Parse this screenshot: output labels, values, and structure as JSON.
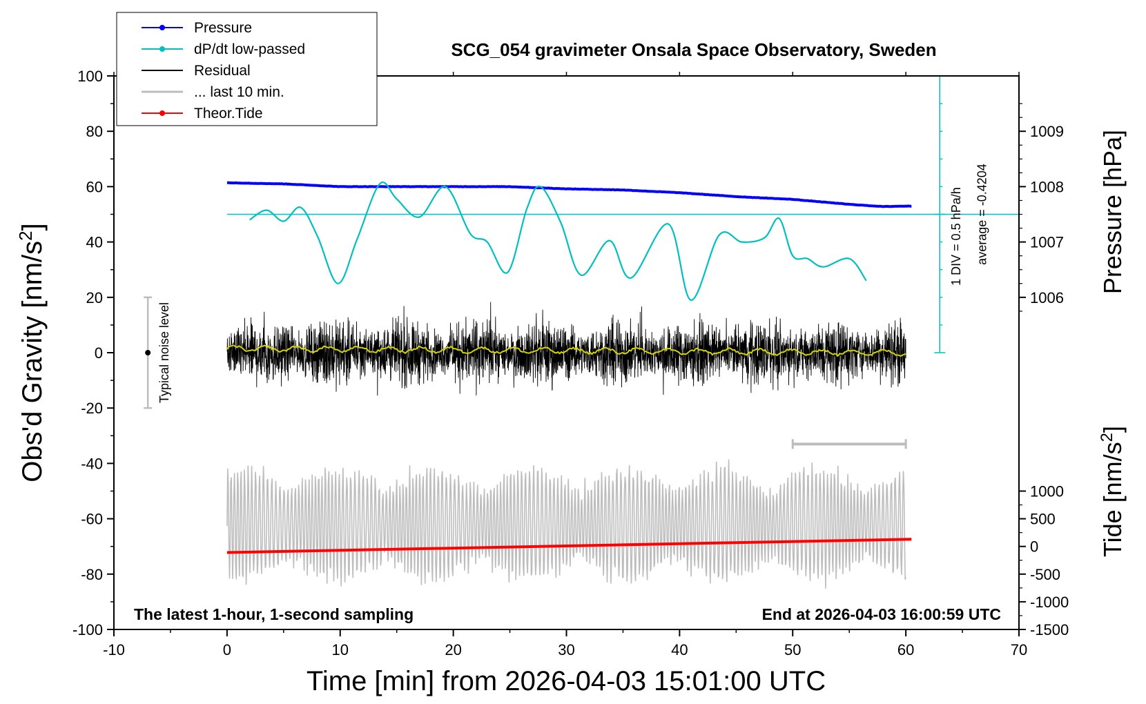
{
  "chart_data": {
    "type": "line",
    "title": "SCG_054 gravimeter Onsala Space Observatory, Sweden",
    "xlabel": "Time [min] from 2026-04-03 15:01:00 UTC",
    "ylabel_left": "Obs'd Gravity [nm/s²]",
    "ylabel_left_base": "Obs'd Gravity [nm/s",
    "ylabel_left_sup": "2",
    "ylabel_left_end": "]",
    "ylabel_pressure": "Pressure [hPa]",
    "ylabel_tide_base": "Tide [nm/s",
    "ylabel_tide_sup": "2",
    "ylabel_tide_end": "]",
    "xlim": [
      -10,
      70
    ],
    "ylim_left": [
      -100,
      100
    ],
    "x_ticks": [
      "-10",
      "0",
      "10",
      "20",
      "30",
      "40",
      "50",
      "60",
      "70"
    ],
    "y_ticks_left": [
      "-100",
      "-80",
      "-60",
      "-40",
      "-20",
      "0",
      "20",
      "40",
      "60",
      "80",
      "100"
    ],
    "pressure_axis": {
      "ticks": [
        "1006",
        "1007",
        "1008",
        "1009"
      ],
      "tick_values": [
        1006,
        1007,
        1008,
        1009
      ],
      "map": {
        "p0": 1006,
        "g0": 20,
        "g_per_hpa": 20
      }
    },
    "tide_axis": {
      "ticks": [
        "-1500",
        "-1000",
        "-500",
        "0",
        "500",
        "1000"
      ],
      "tick_values": [
        -1500,
        -1000,
        -500,
        0,
        500,
        1000
      ],
      "map": {
        "t0": -1500,
        "g0": -100,
        "g_per_unit": 0.02
      }
    },
    "legend": {
      "placement": "top-left",
      "entries": [
        {
          "label": "Pressure",
          "color": "#0000ff",
          "marker": true
        },
        {
          "label": "dP/dt low-passed",
          "color": "#00bfbf",
          "marker": true
        },
        {
          "label": "Residual",
          "color": "#000000",
          "marker": false
        },
        {
          "label": "... last 10 min.",
          "color": "#bdbdbd",
          "marker": false
        },
        {
          "label": "Theor.Tide",
          "color": "#ff0000",
          "marker": true
        }
      ]
    },
    "series": [
      {
        "name": "Pressure",
        "color": "#0000ff",
        "x": [
          0,
          5,
          10,
          15,
          20,
          25,
          30,
          35,
          40,
          45,
          50,
          55,
          58,
          60.5
        ],
        "y_hpa": [
          1008.07,
          1008.05,
          1008.0,
          1008.0,
          1008.0,
          1008.0,
          1007.96,
          1007.94,
          1007.89,
          1007.82,
          1007.77,
          1007.68,
          1007.64,
          1007.65
        ]
      },
      {
        "name": "dP/dt low-passed",
        "color": "#00bfbf",
        "x": [
          2,
          3.5,
          5,
          6.5,
          8,
          9.8,
          11.5,
          13.5,
          15,
          17,
          19.3,
          21.5,
          23,
          24.8,
          26.5,
          27.7,
          29.5,
          31.3,
          33.8,
          35.7,
          39,
          41,
          43.5,
          45.5,
          47.5,
          48.8,
          50,
          51.3,
          52.7,
          55,
          56.5
        ],
        "y": [
          48,
          51.5,
          47.5,
          52.5,
          42,
          25,
          41,
          61,
          55.5,
          49,
          60,
          43,
          40,
          29,
          52,
          60,
          47,
          28,
          40.5,
          27,
          46.5,
          19,
          42.5,
          40,
          41.5,
          48.5,
          35,
          34,
          31,
          34,
          26
        ]
      },
      {
        "name": "Residual",
        "color": "#000000",
        "x_range": [
          0,
          60
        ],
        "amplitude": 14
      },
      {
        "name": "Residual low-passed",
        "color": "#d4d400",
        "x": [
          0,
          60
        ],
        "y": [
          1.5,
          0
        ]
      },
      {
        "name": "... last 10 min.",
        "color": "#bdbdbd",
        "x_range": [
          0,
          60
        ],
        "y_center": -62,
        "amplitude": 18
      },
      {
        "name": "Theor.Tide",
        "color": "#ff0000",
        "x": [
          0,
          60.5
        ],
        "y_tide": [
          -110,
          130
        ]
      }
    ],
    "annotations": {
      "div_label": "1 DIV = 0.5 hPa/h",
      "average_label": "average = -0.4204",
      "average_value": -0.4204,
      "dpdt_reference_level": 50,
      "noise_label": "Typical noise level",
      "noise_range": [
        -20,
        20
      ],
      "last10_bar_x": [
        50,
        60
      ],
      "last10_bar_y": -33,
      "footer_left": "The latest 1-hour, 1-second sampling",
      "footer_right": "End at 2026-04-03 16:00:59 UTC"
    }
  }
}
